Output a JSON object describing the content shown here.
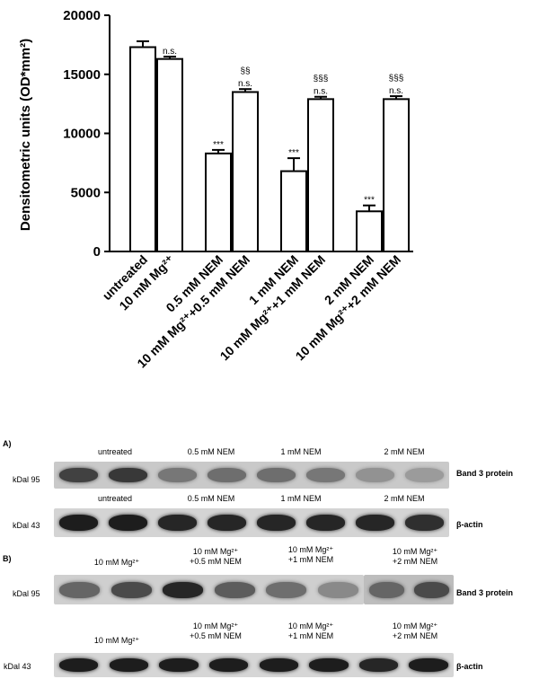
{
  "chart_data": {
    "type": "bar",
    "ylabel": "Densitometric units (OD*mm²)",
    "ylim": [
      0,
      20000
    ],
    "yticks": [
      "0",
      "5000",
      "10000",
      "15000",
      "20000"
    ],
    "categories": [
      "untreated",
      "10 mM Mg²⁺",
      "0.5 mM NEM",
      "10 mM Mg²⁺+0.5 mM NEM",
      "1 mM NEM",
      "10 mM Mg²⁺+1 mM NEM",
      "2 mM NEM",
      "10 mM Mg²⁺+2 mM NEM"
    ],
    "values": [
      17300,
      16300,
      8300,
      13500,
      6800,
      12900,
      3400,
      12900
    ],
    "errors": [
      500,
      200,
      300,
      250,
      1100,
      200,
      500,
      250
    ],
    "annotations": [
      [
        "",
        ""
      ],
      [
        "n.s.",
        ""
      ],
      [
        "***",
        ""
      ],
      [
        "n.s.",
        "§§"
      ],
      [
        "***",
        ""
      ],
      [
        "n.s.",
        "§§§"
      ],
      [
        "***",
        ""
      ],
      [
        "n.s.",
        "§§§"
      ]
    ],
    "bar_fill": "#ffffff",
    "bar_stroke": "#000000"
  },
  "blot": {
    "panel_a_letter": "A)",
    "panel_b_letter": "B)",
    "a_row1_labels": [
      "untreated",
      "0.5 mM NEM",
      "1 mM NEM",
      "2 mM NEM"
    ],
    "a_row2_labels": [
      "untreated",
      "0.5 mM NEM",
      "1 mM NEM",
      "2 mM NEM"
    ],
    "b_row1_labels": [
      [
        "10 mM Mg²⁺",
        ""
      ],
      [
        "10 mM Mg²⁺",
        "+0.5 mM NEM"
      ],
      [
        "10 mM Mg²⁺",
        "+1 mM NEM"
      ],
      [
        "10 mM Mg²⁺",
        "+2 mM NEM"
      ]
    ],
    "b_row2_labels": [
      [
        "10 mM Mg²⁺",
        ""
      ],
      [
        "10 mM Mg²⁺",
        "+0.5 mM NEM"
      ],
      [
        "10 mM Mg²⁺",
        "+1 mM NEM"
      ],
      [
        "10 mM Mg²⁺",
        "+2 mM NEM"
      ]
    ],
    "kdal_95": "kDal 95",
    "kdal_43": "kDal 43",
    "band3_label": "Band 3 protein",
    "actin_label": "β-actin",
    "a_band3_intensity": [
      0.75,
      0.8,
      0.45,
      0.5,
      0.5,
      0.45,
      0.3,
      0.25
    ],
    "a_actin_intensity": [
      0.95,
      0.95,
      0.9,
      0.9,
      0.9,
      0.9,
      0.9,
      0.85
    ],
    "b_band3_intensity": [
      0.55,
      0.7,
      0.9,
      0.6,
      0.5,
      0.35,
      0.55,
      0.7
    ],
    "b_actin_intensity": [
      0.95,
      0.95,
      0.95,
      0.95,
      0.95,
      0.95,
      0.9,
      0.95
    ]
  }
}
